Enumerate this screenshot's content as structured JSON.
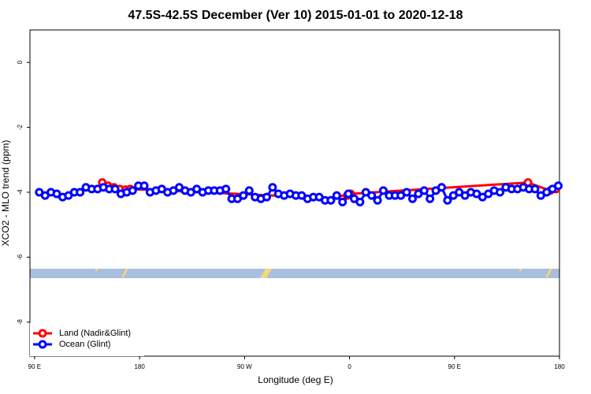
{
  "chart_data": {
    "type": "line",
    "title": "47.5S-42.5S December (Ver 10)   2015-01-01 to 2020-12-18",
    "x_label": "Longitude (deg E)",
    "y_label": "XCO2 - MLO trend (ppm)",
    "xlim": [
      86,
      540
    ],
    "ylim": [
      -9.05,
      1
    ],
    "xticks": [
      {
        "value": 90,
        "label": "90 E"
      },
      180,
      {
        "value": 270,
        "label": "90 W"
      },
      {
        "value": 360,
        "label": "0"
      },
      {
        "value": 450,
        "label": "90 E"
      },
      {
        "value": 540,
        "label": "180"
      }
    ],
    "yticks": [
      0,
      -2,
      -4,
      -6,
      -8
    ],
    "legend": "bottom-left",
    "series": [
      {
        "name": "Land (Nadir&Glint)",
        "color": "#ff0000",
        "x": [
          148,
          153,
          158,
          163,
          168,
          172,
          354,
          358,
          361,
          513,
          532,
          537
        ],
        "values": [
          -3.7,
          -3.8,
          -3.85,
          -3.9,
          -3.92,
          -3.9,
          -4.2,
          -4.1,
          -4.05,
          -3.7,
          -3.95,
          -3.9
        ]
      },
      {
        "name": "Ocean (Glint)",
        "color": "#0000ff",
        "x": [
          94,
          99,
          104,
          109,
          114,
          119,
          124,
          129,
          134,
          139,
          144,
          149,
          154,
          159,
          164,
          169,
          174,
          179,
          184,
          189,
          194,
          199,
          204,
          209,
          214,
          219,
          224,
          229,
          234,
          239,
          244,
          249,
          254,
          259,
          264,
          269,
          274,
          279,
          284,
          289,
          294,
          299,
          304,
          309,
          314,
          319,
          324,
          329,
          334,
          339,
          344,
          349,
          354,
          359,
          364,
          369,
          374,
          379,
          384,
          389,
          394,
          399,
          404,
          409,
          414,
          419,
          424,
          429,
          434,
          439,
          444,
          449,
          454,
          459,
          464,
          469,
          474,
          479,
          484,
          489,
          494,
          499,
          504,
          509,
          514,
          519,
          524,
          529,
          534,
          539
        ],
        "values": [
          -4.0,
          -4.1,
          -4.0,
          -4.05,
          -4.15,
          -4.1,
          -4.0,
          -4.0,
          -3.85,
          -3.9,
          -3.9,
          -3.85,
          -3.9,
          -3.9,
          -4.05,
          -4.0,
          -3.95,
          -3.8,
          -3.8,
          -4.0,
          -3.95,
          -3.9,
          -4.0,
          -3.95,
          -3.85,
          -3.95,
          -4.0,
          -3.9,
          -4.0,
          -3.95,
          -3.95,
          -3.95,
          -3.9,
          -4.2,
          -4.2,
          -4.1,
          -3.95,
          -4.15,
          -4.2,
          -4.15,
          -3.85,
          -4.05,
          -4.1,
          -4.05,
          -4.1,
          -4.1,
          -4.2,
          -4.15,
          -4.15,
          -4.25,
          -4.25,
          -4.1,
          -4.3,
          -4.05,
          -4.2,
          -4.3,
          -4.0,
          -4.1,
          -4.25,
          -3.95,
          -4.1,
          -4.1,
          -4.1,
          -4.0,
          -4.2,
          -4.05,
          -3.95,
          -4.2,
          -3.95,
          -3.85,
          -4.25,
          -4.1,
          -4.0,
          -4.1,
          -4.0,
          -4.05,
          -4.15,
          -4.05,
          -3.95,
          -4.0,
          -3.85,
          -3.9,
          -3.9,
          -3.85,
          -3.9,
          -3.9,
          -4.1,
          -4.0,
          -3.9,
          -3.8
        ]
      }
    ]
  }
}
